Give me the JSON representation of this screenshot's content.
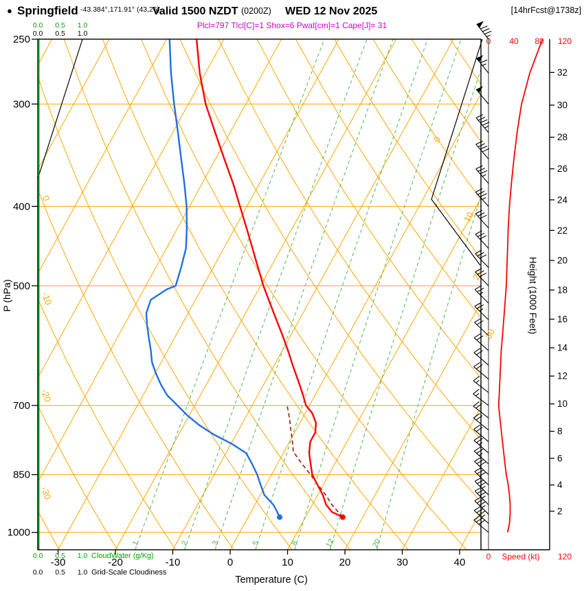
{
  "header": {
    "bullet": "●",
    "station": "Springfield",
    "coords": "-43.384°,171.91° (43,26)",
    "valid": "Valid 1500 NZDT",
    "zulu": "(0200Z)",
    "date": "WED 12 Nov 2025",
    "fcst_tag": "[14hrFcst@1738z]",
    "params_line": "Plcl=797 Tlcl[C]=1 Shox=6 Pwat[cm]=1 Cape[J]= 31"
  },
  "axes": {
    "pressure_label": "P (hPa)",
    "pressure_ticks": [
      250,
      300,
      400,
      500,
      700,
      850,
      1000
    ],
    "temp_label": "Temperature (C)",
    "temp_ticks": [
      -30,
      -20,
      -10,
      0,
      10,
      20,
      30,
      40
    ],
    "height_label": "Height (1000 Feet)",
    "height_ticks": [
      2,
      4,
      6,
      8,
      10,
      12,
      14,
      16,
      18,
      20,
      22,
      24,
      26,
      28,
      30,
      32
    ],
    "speed_label": "Speed (kt)",
    "speed_ticks": [
      0,
      40,
      80,
      120
    ],
    "cloud_scale": [
      "0.0",
      "0.5",
      "1.0"
    ],
    "cloudwater_label": "CloudWater (g/Kg)",
    "cloudiness_label": "Grid-Scale Cloudiness"
  },
  "colors": {
    "grid_orange": "#ffa500",
    "mixing_green": "#4db84d",
    "cloud_green": "#00a400",
    "temp_red": "#ff0000",
    "dew_blue": "#1f6fe0",
    "parcel_maroon": "#993322",
    "magenta": "#cc00cc",
    "speed_red": "#ff0000",
    "black": "#000000"
  },
  "chart_data": {
    "type": "skew-t-log-p",
    "pressure_range_hpa": [
      1050,
      250
    ],
    "temp_axis_range_c": [
      -35,
      45
    ],
    "grid": {
      "pressure_lines_hpa": [
        300,
        400,
        500,
        700,
        850,
        1000
      ],
      "isotherms_c": {
        "min": -120,
        "max": 40,
        "step": 10
      },
      "isotherm_labels_right_c": [
        0,
        10,
        20,
        30
      ],
      "dry_adiabat_labels_c": [
        0,
        -10,
        -20,
        -30
      ],
      "dry_adiabats_theta_k": {
        "min": 240,
        "max": 400,
        "step": 10
      },
      "mixing_ratio_g_kg": [
        1,
        2,
        3,
        5,
        8,
        12,
        20
      ]
    },
    "indices": {
      "plcl_hpa": 797,
      "tlcl_c": 1,
      "showalter": 6,
      "pwat_cm": 1,
      "cape_j": 31
    },
    "surface_markers": {
      "pressure_hpa": 958,
      "temp_c": 16.5,
      "dewpoint_c": 5.5
    },
    "temperature_profile": [
      [
        958,
        16.5
      ],
      [
        944,
        14.1
      ],
      [
        925,
        12.4
      ],
      [
        900,
        10.9
      ],
      [
        875,
        9.0
      ],
      [
        850,
        7.1
      ],
      [
        825,
        5.8
      ],
      [
        800,
        4.5
      ],
      [
        775,
        3.6
      ],
      [
        755,
        3.6
      ],
      [
        735,
        2.8
      ],
      [
        715,
        1.2
      ],
      [
        700,
        -0.6
      ],
      [
        675,
        -2.5
      ],
      [
        650,
        -4.6
      ],
      [
        625,
        -6.8
      ],
      [
        600,
        -9.0
      ],
      [
        575,
        -11.4
      ],
      [
        550,
        -14.0
      ],
      [
        525,
        -16.7
      ],
      [
        500,
        -19.5
      ],
      [
        475,
        -22.2
      ],
      [
        450,
        -25.0
      ],
      [
        425,
        -28.0
      ],
      [
        400,
        -31.2
      ],
      [
        375,
        -34.6
      ],
      [
        350,
        -38.5
      ],
      [
        325,
        -42.6
      ],
      [
        300,
        -47.0
      ],
      [
        275,
        -51.0
      ],
      [
        250,
        -54.8
      ]
    ],
    "dewpoint_profile": [
      [
        958,
        5.5
      ],
      [
        940,
        4.3
      ],
      [
        925,
        3.2
      ],
      [
        900,
        0.7
      ],
      [
        875,
        -0.9
      ],
      [
        850,
        -2.5
      ],
      [
        825,
        -4.4
      ],
      [
        800,
        -6.5
      ],
      [
        780,
        -9.8
      ],
      [
        760,
        -13.8
      ],
      [
        740,
        -17.3
      ],
      [
        720,
        -20.3
      ],
      [
        700,
        -23.0
      ],
      [
        680,
        -25.8
      ],
      [
        660,
        -27.9
      ],
      [
        640,
        -29.8
      ],
      [
        620,
        -31.6
      ],
      [
        600,
        -32.9
      ],
      [
        580,
        -34.4
      ],
      [
        560,
        -35.9
      ],
      [
        540,
        -37.3
      ],
      [
        520,
        -37.8
      ],
      [
        505,
        -36.0
      ],
      [
        500,
        -34.8
      ],
      [
        475,
        -35.6
      ],
      [
        450,
        -36.6
      ],
      [
        425,
        -38.4
      ],
      [
        400,
        -40.5
      ],
      [
        375,
        -43.1
      ],
      [
        350,
        -46.0
      ],
      [
        325,
        -49.1
      ],
      [
        300,
        -52.5
      ],
      [
        275,
        -56.0
      ],
      [
        250,
        -59.5
      ]
    ],
    "parcel_path": [
      [
        958,
        16.5
      ],
      [
        925,
        13.4
      ],
      [
        900,
        11.4
      ],
      [
        875,
        9.1
      ],
      [
        850,
        6.8
      ],
      [
        825,
        4.3
      ],
      [
        797,
        1.6
      ],
      [
        775,
        0.5
      ],
      [
        750,
        -0.9
      ],
      [
        725,
        -2.3
      ],
      [
        700,
        -3.9
      ]
    ],
    "wind_profile_p_kt_dir": [
      [
        1000,
        30,
        310
      ],
      [
        975,
        33,
        312
      ],
      [
        950,
        34,
        314
      ],
      [
        925,
        34,
        315
      ],
      [
        900,
        33,
        315
      ],
      [
        875,
        31,
        314
      ],
      [
        850,
        28,
        313
      ],
      [
        825,
        26,
        312
      ],
      [
        800,
        24,
        311
      ],
      [
        775,
        22,
        310
      ],
      [
        750,
        20,
        309
      ],
      [
        725,
        18,
        308
      ],
      [
        700,
        16,
        307
      ],
      [
        675,
        17,
        308
      ],
      [
        650,
        18,
        310
      ],
      [
        625,
        19,
        311
      ],
      [
        600,
        20,
        312
      ],
      [
        575,
        22,
        313
      ],
      [
        550,
        24,
        314
      ],
      [
        525,
        26,
        315
      ],
      [
        500,
        28,
        316
      ],
      [
        475,
        29,
        316
      ],
      [
        450,
        30,
        317
      ],
      [
        425,
        31,
        318
      ],
      [
        400,
        33,
        318
      ],
      [
        375,
        36,
        319
      ],
      [
        350,
        40,
        319
      ],
      [
        325,
        45,
        320
      ],
      [
        300,
        52,
        320
      ],
      [
        275,
        65,
        321
      ],
      [
        250,
        85,
        322
      ]
    ],
    "cloudiness_profile": [
      [
        1050,
        0
      ],
      [
        370,
        0
      ],
      [
        250,
        1.0
      ]
    ],
    "cloudwater_profile_g_kg": [
      [
        1050,
        0
      ],
      [
        250,
        0
      ]
    ]
  }
}
